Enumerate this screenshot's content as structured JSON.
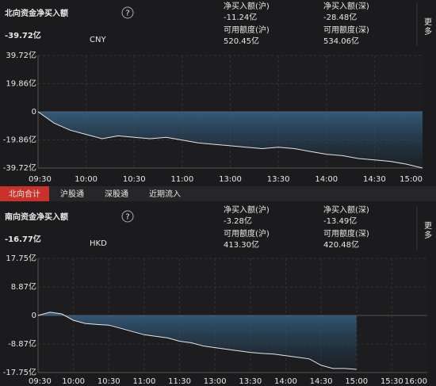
{
  "tabs": {
    "items": [
      "北向合计",
      "沪股通",
      "深股通",
      "近期流入"
    ],
    "active": 0
  },
  "chart_data": [
    {
      "type": "line",
      "title": "北向资金净买入额",
      "help_icon": "?",
      "headline": "-39.72亿",
      "currency": "CNY",
      "more": "更多",
      "stats": [
        {
          "label": "净买入额(沪)",
          "value": "-11.24亿",
          "color": "#2fc25b"
        },
        {
          "label": "净买入额(深)",
          "value": "-28.48亿",
          "color": "#2fc25b"
        },
        {
          "label": "可用额度(沪)",
          "value": "520.45亿",
          "color": "#dddddd"
        },
        {
          "label": "可用额度(深)",
          "value": "534.06亿",
          "color": "#dddddd"
        }
      ],
      "x": [
        "09:30",
        null,
        null,
        "10:00",
        null,
        null,
        "10:30",
        null,
        null,
        "11:00",
        null,
        null,
        "13:00",
        null,
        null,
        "13:30",
        null,
        null,
        "14:00",
        null,
        null,
        "14:30",
        null,
        null,
        "15:00"
      ],
      "series": [
        {
          "color": "#e6e6e6",
          "values": [
            0,
            -8,
            -13,
            -16,
            -19,
            -17,
            -18,
            -19,
            -18,
            -20,
            -22,
            -23,
            -24,
            -25,
            -26,
            -25,
            -26,
            -28,
            -30,
            -31,
            -33,
            -34,
            -35,
            -37,
            -39.72
          ]
        }
      ],
      "ylim": [
        -39.72,
        39.72
      ],
      "yticks": [
        {
          "value": -39.72,
          "label": "-39.72亿"
        },
        {
          "value": -19.86,
          "label": "-19.86亿"
        },
        0,
        {
          "value": 19.86,
          "label": "19.86亿"
        },
        {
          "value": 39.72,
          "label": "39.72亿"
        }
      ],
      "grid": true
    },
    {
      "type": "line",
      "title": "南向资金净买入额",
      "help_icon": "?",
      "headline": "-16.77亿",
      "currency": "HKD",
      "more": "更多",
      "stats": [
        {
          "label": "净买入额(沪)",
          "value": "-3.28亿",
          "color": "#2fc25b"
        },
        {
          "label": "净买入额(深)",
          "value": "-13.49亿",
          "color": "#2fc25b"
        },
        {
          "label": "可用额度(沪)",
          "value": "413.30亿",
          "color": "#dddddd"
        },
        {
          "label": "可用额度(深)",
          "value": "420.48亿",
          "color": "#dddddd"
        }
      ],
      "x": [
        "09:30",
        null,
        null,
        "10:00",
        null,
        null,
        "10:30",
        null,
        null,
        "11:00",
        null,
        null,
        "11:30",
        null,
        null,
        "13:00",
        null,
        null,
        "13:30",
        null,
        null,
        "14:00",
        null,
        null,
        "14:30",
        null,
        null,
        "15:00",
        null,
        null,
        "15:30",
        null,
        null,
        "16:00"
      ],
      "series": [
        {
          "color": "#e6e6e6",
          "values": [
            0,
            1,
            0.5,
            -1.5,
            -2.5,
            -2.8,
            -3,
            -4,
            -5,
            -6,
            -6.5,
            -7,
            -8,
            -8.5,
            -9.5,
            -10,
            -10.5,
            -11,
            -11.5,
            -11.8,
            -12,
            -12.5,
            -13,
            -13.5,
            -15.5,
            -16.5,
            -16.5,
            -16.77,
            null,
            null,
            null,
            null,
            null,
            null
          ]
        }
      ],
      "ylim": [
        -17.75,
        17.75
      ],
      "yticks": [
        {
          "value": -17.75,
          "label": "-17.75亿"
        },
        {
          "value": -8.87,
          "label": "-8.87亿"
        },
        0,
        {
          "value": 8.87,
          "label": "8.87亿"
        },
        {
          "value": 17.75,
          "label": "17.75亿"
        }
      ],
      "grid": true
    }
  ]
}
